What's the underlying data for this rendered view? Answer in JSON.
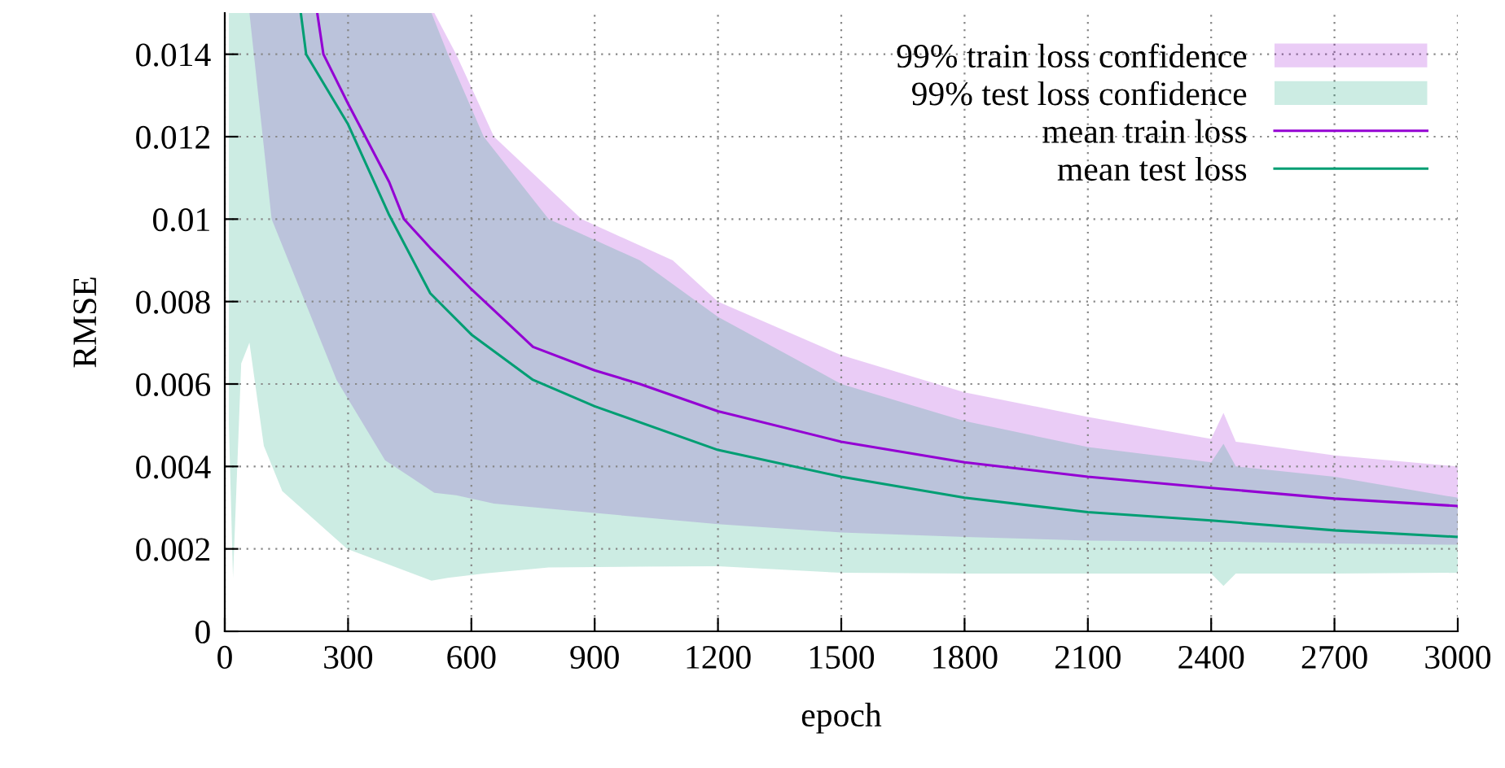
{
  "chart_data": {
    "type": "line",
    "xlabel": "epoch",
    "ylabel": "RMSE",
    "xlim": [
      0,
      3000
    ],
    "ylim": [
      0,
      0.015
    ],
    "xticks": [
      0,
      300,
      600,
      900,
      1200,
      1500,
      1800,
      2100,
      2400,
      2700,
      3000
    ],
    "yticks": [
      0,
      0.002,
      0.004,
      0.006,
      0.008,
      0.01,
      0.012,
      0.014
    ],
    "grid": true,
    "legend": "top right",
    "line_style": "solid",
    "marker": "none",
    "series": [
      {
        "name": "99% train loss confidence",
        "color": "#9400d3",
        "x": [
          60,
          114,
          272,
          390,
          510,
          563,
          655,
          868,
          1090,
          1200,
          1500,
          1800,
          2100,
          2400,
          2430,
          2460,
          2700,
          3000
        ],
        "values": [
          null,
          null,
          null,
          null,
          null,
          null,
          null,
          null,
          null,
          null,
          null,
          null,
          null,
          null,
          null,
          null,
          null,
          null
        ],
        "upper": [
          0.015,
          0.015,
          0.015,
          0.015,
          0.015,
          0.014,
          0.012,
          0.01,
          0.009,
          0.008,
          0.0067,
          0.0058,
          0.0052,
          0.00467,
          0.0053,
          0.0046,
          0.00427,
          0.004
        ],
        "lower": [
          0.015,
          0.01,
          0.0061,
          0.00415,
          0.00336,
          0.0033,
          0.0031,
          0.0029,
          0.0027,
          0.0026,
          0.0024,
          0.00229,
          0.0022,
          0.00217,
          0.00217,
          0.00217,
          0.00213,
          0.0021
        ]
      },
      {
        "name": "99% test loss confidence",
        "color": "#009e73",
        "x": [
          10,
          20,
          40,
          60,
          95,
          140,
          298,
          503,
          543,
          630,
          788,
          1010,
          1200,
          1500,
          1800,
          2100,
          2400,
          2430,
          2460,
          2700,
          3000
        ],
        "values": [
          null,
          null,
          null,
          null,
          null,
          null,
          null,
          null,
          null,
          null,
          null,
          null,
          null,
          null,
          null,
          null,
          null,
          null,
          null,
          null,
          null
        ],
        "upper": [
          0.015,
          0.015,
          0.015,
          0.015,
          0.015,
          0.015,
          0.015,
          0.015,
          0.014,
          0.012,
          0.01,
          0.009,
          0.00763,
          0.006,
          0.0051,
          0.00447,
          0.0041,
          0.00455,
          0.004,
          0.00375,
          0.00324
        ],
        "lower": [
          0.005,
          0.0013,
          0.0065,
          0.007,
          0.0045,
          0.0034,
          0.002,
          0.00123,
          0.0013,
          0.0014,
          0.00155,
          0.00157,
          0.00158,
          0.00142,
          0.0014,
          0.0014,
          0.0014,
          0.0011,
          0.0014,
          0.0014,
          0.00142
        ]
      },
      {
        "name": "mean train loss",
        "type": "line",
        "color": "#9400d3",
        "x": [
          225,
          240,
          300,
          400,
          436,
          500,
          600,
          750,
          900,
          1010,
          1200,
          1500,
          1800,
          2100,
          2400,
          2700,
          3000
        ],
        "values": [
          0.015,
          0.014,
          0.0128,
          0.0109,
          0.01,
          0.0093,
          0.0083,
          0.0069,
          0.00633,
          0.006,
          0.00534,
          0.0046,
          0.0041,
          0.00375,
          0.00348,
          0.00322,
          0.00304
        ]
      },
      {
        "name": "mean test loss",
        "type": "line",
        "color": "#009e73",
        "x": [
          185,
          198,
          300,
          400,
          500,
          600,
          750,
          900,
          1200,
          1500,
          1800,
          2100,
          2400,
          2700,
          3000
        ],
        "values": [
          0.015,
          0.014,
          0.0123,
          0.0101,
          0.0082,
          0.0072,
          0.0061,
          0.00546,
          0.0044,
          0.00375,
          0.00324,
          0.00289,
          0.00269,
          0.00245,
          0.00229
        ]
      }
    ]
  }
}
